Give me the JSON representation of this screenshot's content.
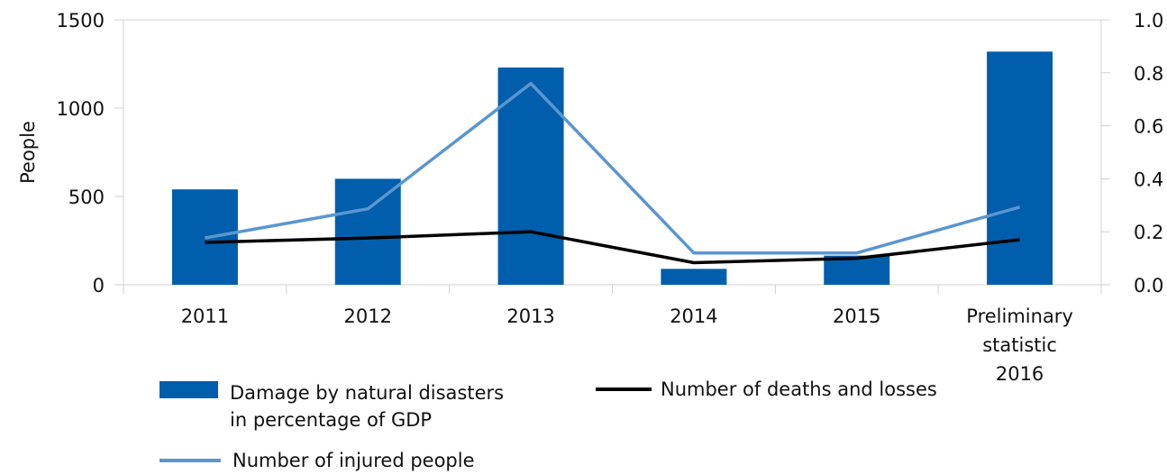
{
  "chart_data": {
    "type": "bar",
    "categories": [
      "2011",
      "2012",
      "2013",
      "2014",
      "2015",
      "Preliminary statistic 2016"
    ],
    "category_lines": [
      [
        "2011"
      ],
      [
        "2012"
      ],
      [
        "2013"
      ],
      [
        "2014"
      ],
      [
        "2015"
      ],
      [
        "Preliminary",
        "statistic",
        "2016"
      ]
    ],
    "ylabel": "People",
    "ylim": [
      0,
      1500
    ],
    "yticks": [
      0,
      500,
      1000,
      1500
    ],
    "y2lim": [
      0,
      1.0
    ],
    "y2ticks": [
      "0.0",
      "0.2",
      "0.4",
      "0.6",
      "0.8",
      "1.0"
    ],
    "grid": false,
    "legend_position": "bottom",
    "series": [
      {
        "name": "Damage by natural disasters in percentage of GDP",
        "legend_lines": [
          "Damage by natural disasters",
          "in percentage of GDP"
        ],
        "type": "bar",
        "axis": "right",
        "color": "#005eac",
        "values": [
          0.36,
          0.4,
          0.82,
          0.06,
          0.11,
          0.88
        ]
      },
      {
        "name": "Number of deaths and losses",
        "type": "line",
        "axis": "left",
        "color": "#000000",
        "values": [
          240,
          265,
          300,
          125,
          150,
          255
        ]
      },
      {
        "name": "Number of injured people",
        "type": "line",
        "axis": "left",
        "color": "#5a96d0",
        "values": [
          265,
          430,
          1140,
          180,
          180,
          440
        ]
      }
    ]
  }
}
